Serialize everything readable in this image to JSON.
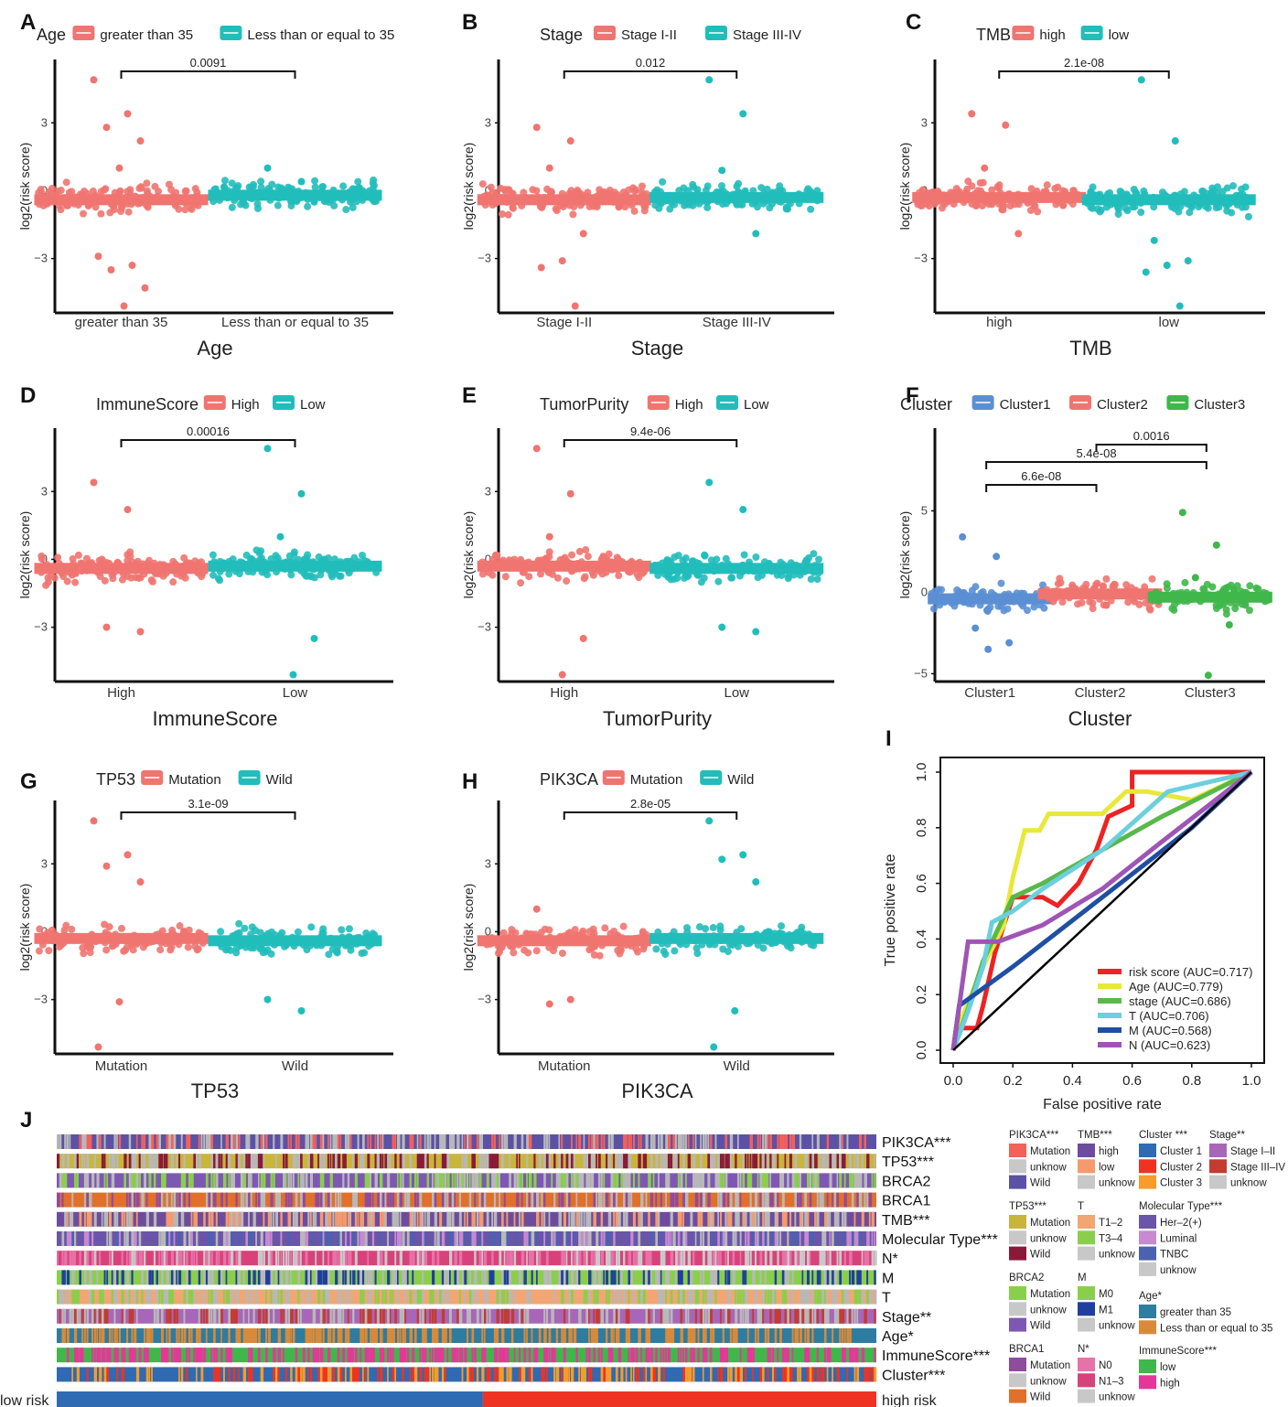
{
  "panel_letters": [
    "A",
    "B",
    "C",
    "D",
    "E",
    "F",
    "G",
    "H",
    "I",
    "J"
  ],
  "colors": {
    "red": "#f07470",
    "teal": "#21bdbb",
    "blue": "#5b8fd4",
    "green": "#3fb74a"
  },
  "chart_data": [
    {
      "id": "A",
      "type": "box-jitter",
      "title": "Age",
      "legend_title": "Age",
      "categories": [
        "greater than 35",
        "Less than or equal to 35"
      ],
      "legend_labels": [
        "greater than 35",
        "Less than or equal to 35"
      ],
      "xlabel": "Age",
      "ylabel": "log2(risk score)",
      "yticks": [
        -3,
        0,
        3
      ],
      "ylim": [
        -5.2,
        5.6
      ],
      "medians": [
        -0.4,
        -0.2
      ],
      "comparisons": [
        {
          "from": 0,
          "to": 1,
          "label": "0.0091"
        }
      ],
      "outliers": [
        [
          4.9,
          3.4,
          2.8,
          2.2,
          1.0,
          -2.9,
          -3.3,
          -3.5,
          -4.3,
          -5.1
        ],
        [
          1.0,
          0.4,
          -0.2,
          -0.5
        ]
      ]
    },
    {
      "id": "B",
      "type": "box-jitter",
      "title": "Stage",
      "legend_title": "Stage",
      "categories": [
        "Stage I-II",
        "Stage III-IV"
      ],
      "legend_labels": [
        "Stage I-II",
        "Stage III-IV"
      ],
      "xlabel": "Stage",
      "ylabel": "log2(risk score)",
      "yticks": [
        -3,
        0,
        3
      ],
      "ylim": [
        -5.2,
        5.6
      ],
      "medians": [
        -0.4,
        -0.3
      ],
      "comparisons": [
        {
          "from": 0,
          "to": 1,
          "label": "0.012"
        }
      ],
      "outliers": [
        [
          2.8,
          2.2,
          1.0,
          -1.9,
          -3.1,
          -3.4,
          -5.1
        ],
        [
          4.9,
          3.4,
          0.9,
          -1.9
        ]
      ]
    },
    {
      "id": "C",
      "type": "box-jitter",
      "title": "TMB",
      "legend_title": "TMB",
      "categories": [
        "high",
        "low"
      ],
      "legend_labels": [
        "high",
        "low"
      ],
      "xlabel": "TMB",
      "ylabel": "log2(risk score)",
      "yticks": [
        -3,
        0,
        3
      ],
      "ylim": [
        -5.2,
        5.6
      ],
      "medians": [
        -0.3,
        -0.4
      ],
      "comparisons": [
        {
          "from": 0,
          "to": 1,
          "label": "2.1e-08"
        }
      ],
      "outliers": [
        [
          3.4,
          2.9,
          1.0,
          -1.9
        ],
        [
          4.9,
          2.2,
          -2.2,
          -3.1,
          -3.3,
          -3.6,
          -5.1
        ]
      ]
    },
    {
      "id": "D",
      "type": "box-jitter",
      "title": "ImmuneScore",
      "legend_title": "ImmuneScore",
      "categories": [
        "High",
        "Low"
      ],
      "legend_labels": [
        "High",
        "Low"
      ],
      "xlabel": "ImmuneScore",
      "ylabel": "log2(risk score)",
      "yticks": [
        -3,
        0,
        3
      ],
      "ylim": [
        -5.2,
        5.6
      ],
      "medians": [
        -0.4,
        -0.3
      ],
      "comparisons": [
        {
          "from": 0,
          "to": 1,
          "label": "0.00016"
        }
      ],
      "outliers": [
        [
          3.4,
          2.2,
          -3.0,
          -3.2
        ],
        [
          4.9,
          2.9,
          1.0,
          -3.5,
          -5.1
        ]
      ]
    },
    {
      "id": "E",
      "type": "box-jitter",
      "title": "TumorPurity",
      "legend_title": "TumorPurity",
      "categories": [
        "High",
        "Low"
      ],
      "legend_labels": [
        "High",
        "Low"
      ],
      "xlabel": "TumorPurity",
      "ylabel": "log2(risk score)",
      "yticks": [
        -3,
        0,
        3
      ],
      "ylim": [
        -5.2,
        5.6
      ],
      "medians": [
        -0.3,
        -0.4
      ],
      "comparisons": [
        {
          "from": 0,
          "to": 1,
          "label": "9.4e-06"
        }
      ],
      "outliers": [
        [
          4.9,
          2.9,
          1.0,
          -3.5,
          -5.1
        ],
        [
          3.4,
          2.2,
          -3.0,
          -3.2
        ]
      ]
    },
    {
      "id": "F",
      "type": "box-jitter",
      "title": "Cluster",
      "legend_title": "Cluster",
      "categories": [
        "Cluster1",
        "Cluster2",
        "Cluster3"
      ],
      "legend_labels": [
        "Cluster1",
        "Cluster2",
        "Cluster3"
      ],
      "xlabel": "Cluster",
      "ylabel": "log2(risk score)",
      "yticks": [
        -5,
        0,
        5
      ],
      "ylim": [
        -5.2,
        9.8
      ],
      "medians": [
        -0.4,
        -0.1,
        -0.3
      ],
      "comparisons": [
        {
          "from": 0,
          "to": 1,
          "label": "6.6e-08"
        },
        {
          "from": 0,
          "to": 2,
          "label": "5.4e-08"
        },
        {
          "from": 1,
          "to": 2,
          "label": "0.0016"
        }
      ],
      "outliers": [
        [
          3.4,
          2.2,
          -2.2,
          -3.1,
          -3.5
        ],
        [
          0.3,
          -0.8
        ],
        [
          4.9,
          2.9,
          0.9,
          -2.0,
          -5.1
        ]
      ]
    },
    {
      "id": "G",
      "type": "box-jitter",
      "title": "TP53",
      "legend_title": "TP53",
      "categories": [
        "Mutation",
        "Wild"
      ],
      "legend_labels": [
        "Mutation",
        "Wild"
      ],
      "xlabel": "TP53",
      "ylabel": "log2(risk score)",
      "yticks": [
        -3,
        0,
        3
      ],
      "ylim": [
        -5.2,
        5.6
      ],
      "medians": [
        -0.3,
        -0.4
      ],
      "comparisons": [
        {
          "from": 0,
          "to": 1,
          "label": "3.1e-09"
        }
      ],
      "outliers": [
        [
          4.9,
          3.4,
          2.9,
          2.2,
          -3.1,
          -5.1
        ],
        [
          -3.0,
          -3.5
        ]
      ]
    },
    {
      "id": "H",
      "type": "box-jitter",
      "title": "PIK3CA",
      "legend_title": "PIK3CA",
      "categories": [
        "Mutation",
        "Wild"
      ],
      "legend_labels": [
        "Mutation",
        "Wild"
      ],
      "xlabel": "PIK3CA",
      "ylabel": "log2(risk score)",
      "yticks": [
        -3,
        0,
        3
      ],
      "ylim": [
        -5.2,
        5.6
      ],
      "medians": [
        -0.4,
        -0.3
      ],
      "comparisons": [
        {
          "from": 0,
          "to": 1,
          "label": "2.8e-05"
        }
      ],
      "outliers": [
        [
          1.0,
          -3.0,
          -3.2
        ],
        [
          4.9,
          3.4,
          3.2,
          2.2,
          -3.5,
          -5.1
        ]
      ]
    },
    {
      "id": "I",
      "type": "line",
      "title": "",
      "xlabel": "False positive rate",
      "ylabel": "True positive rate",
      "xlim": [
        0,
        1
      ],
      "ylim": [
        0,
        1
      ],
      "ticks": [
        "0.0",
        "0.2",
        "0.4",
        "0.6",
        "0.8",
        "1.0"
      ],
      "tick_values": [
        0,
        0.2,
        0.4,
        0.6,
        0.8,
        1.0
      ],
      "series": [
        {
          "name": "risk score (AUC=0.717)",
          "color": "#ee2222",
          "points": [
            [
              0,
              0
            ],
            [
              0.01,
              0.08
            ],
            [
              0.08,
              0.08
            ],
            [
              0.1,
              0.16
            ],
            [
              0.14,
              0.35
            ],
            [
              0.2,
              0.55
            ],
            [
              0.3,
              0.55
            ],
            [
              0.35,
              0.52
            ],
            [
              0.42,
              0.6
            ],
            [
              0.48,
              0.72
            ],
            [
              0.52,
              0.84
            ],
            [
              0.6,
              0.88
            ],
            [
              0.6,
              1.0
            ],
            [
              0.8,
              1.0
            ],
            [
              1,
              1
            ]
          ]
        },
        {
          "name": "Age (AUC=0.779)",
          "color": "#e8e83a",
          "points": [
            [
              0,
              0
            ],
            [
              0.03,
              0.12
            ],
            [
              0.1,
              0.3
            ],
            [
              0.17,
              0.45
            ],
            [
              0.2,
              0.62
            ],
            [
              0.24,
              0.79
            ],
            [
              0.29,
              0.79
            ],
            [
              0.32,
              0.85
            ],
            [
              0.43,
              0.85
            ],
            [
              0.5,
              0.85
            ],
            [
              0.58,
              0.93
            ],
            [
              0.65,
              0.93
            ],
            [
              0.8,
              0.9
            ],
            [
              1,
              1
            ]
          ]
        },
        {
          "name": "stage (AUC=0.686)",
          "color": "#5ab84a",
          "points": [
            [
              0,
              0
            ],
            [
              0.05,
              0.15
            ],
            [
              0.1,
              0.32
            ],
            [
              0.2,
              0.55
            ],
            [
              0.3,
              0.6
            ],
            [
              0.5,
              0.72
            ],
            [
              0.7,
              0.84
            ],
            [
              1,
              1
            ]
          ]
        },
        {
          "name": "T (AUC=0.706)",
          "color": "#6ccfde",
          "points": [
            [
              0,
              0
            ],
            [
              0.05,
              0.14
            ],
            [
              0.1,
              0.3
            ],
            [
              0.13,
              0.46
            ],
            [
              0.2,
              0.5
            ],
            [
              0.3,
              0.58
            ],
            [
              0.5,
              0.72
            ],
            [
              0.72,
              0.93
            ],
            [
              1,
              1
            ]
          ]
        },
        {
          "name": "M (AUC=0.568)",
          "color": "#1f4fa3",
          "points": [
            [
              0,
              0
            ],
            [
              0.02,
              0.16
            ],
            [
              0.2,
              0.3
            ],
            [
              0.5,
              0.55
            ],
            [
              0.8,
              0.8
            ],
            [
              1,
              1
            ]
          ]
        },
        {
          "name": "N (AUC=0.623)",
          "color": "#9e55b5",
          "points": [
            [
              0,
              0
            ],
            [
              0.05,
              0.39
            ],
            [
              0.15,
              0.39
            ],
            [
              0.3,
              0.45
            ],
            [
              0.5,
              0.58
            ],
            [
              0.7,
              0.75
            ],
            [
              1,
              1
            ]
          ]
        },
        {
          "name": "diagonal",
          "color": "#000000",
          "points": [
            [
              0,
              0
            ],
            [
              1,
              1
            ]
          ]
        }
      ]
    },
    {
      "id": "J",
      "type": "heatmap",
      "title": "",
      "rows": [
        "PIK3CA***",
        "TP53***",
        "BRCA2",
        "BRCA1",
        "TMB***",
        "Molecular Type***",
        "N*",
        "M",
        "T",
        "Stage**",
        "Age*",
        "ImmuneScore***",
        "Cluster***"
      ],
      "risk_labels": [
        "low risk",
        "high risk"
      ],
      "row_palettes": [
        [
          "#5b52a6",
          "#b8b8b8",
          "#f4605a"
        ],
        [
          "#c9b53a",
          "#8b1a3a",
          "#b8b8b8"
        ],
        [
          "#7e57b4",
          "#8acf4c",
          "#b8b8b8"
        ],
        [
          "#e0702a",
          "#8f4b9e",
          "#b8b8b8"
        ],
        [
          "#6d4c9e",
          "#f49a6c",
          "#b8b8b8"
        ],
        [
          "#6a55a8",
          "#c58ad1",
          "#4a62b0",
          "#b8b8b8"
        ],
        [
          "#d8427a",
          "#c8c8c8",
          "#e673a8"
        ],
        [
          "#8acf4c",
          "#1f3f9f",
          "#b8b8b8"
        ],
        [
          "#f2a673",
          "#8acf4c",
          "#b8b8b8"
        ],
        [
          "#a866b8",
          "#c43b2f",
          "#b8b8b8"
        ],
        [
          "#2e7ca0",
          "#d88a3a"
        ],
        [
          "#3fb74a",
          "#e7369a"
        ],
        [
          "#2f6ab3",
          "#ee3323",
          "#f79c28"
        ]
      ],
      "dominant": [
        0,
        0,
        0,
        0,
        0,
        0,
        0,
        0,
        0,
        0,
        0,
        0,
        0
      ],
      "risk_split": 0.52,
      "legends": [
        {
          "title": "PIK3CA***",
          "items": [
            [
              "Mutation",
              "#f4605a"
            ],
            [
              "unknow",
              "#c8c8c8"
            ],
            [
              "Wild",
              "#5b52a6"
            ]
          ]
        },
        {
          "title": "TMB***",
          "items": [
            [
              "high",
              "#6d4c9e"
            ],
            [
              "low",
              "#f49a6c"
            ],
            [
              "unknow",
              "#c8c8c8"
            ]
          ]
        },
        {
          "title": "Cluster ***",
          "items": [
            [
              "Cluster 1",
              "#2f6ab3"
            ],
            [
              "Cluster 2",
              "#ee3323"
            ],
            [
              "Cluster 3",
              "#f79c28"
            ]
          ]
        },
        {
          "title": "Stage**",
          "items": [
            [
              "Stage I–II",
              "#a866b8"
            ],
            [
              "Stage III–IV",
              "#c43b2f"
            ],
            [
              "unknow",
              "#c8c8c8"
            ]
          ]
        },
        {
          "title": "TP53***",
          "items": [
            [
              "Mutation",
              "#c9b53a"
            ],
            [
              "unknow",
              "#c8c8c8"
            ],
            [
              "Wild",
              "#8b1a3a"
            ]
          ]
        },
        {
          "title": "T",
          "items": [
            [
              "T1–2",
              "#f2a673"
            ],
            [
              "T3–4",
              "#8acf4c"
            ],
            [
              "unknow",
              "#c8c8c8"
            ]
          ]
        },
        {
          "title": "Molecular Type***",
          "items": [
            [
              "Her–2(+)",
              "#6a55a8"
            ],
            [
              "Luminal",
              "#c58ad1"
            ],
            [
              "TNBC",
              "#4a62b0"
            ],
            [
              "unknow",
              "#c8c8c8"
            ]
          ]
        },
        {
          "title": "BRCA2",
          "items": [
            [
              "Mutation",
              "#8acf4c"
            ],
            [
              "unknow",
              "#c8c8c8"
            ],
            [
              "Wild",
              "#7e57b4"
            ]
          ]
        },
        {
          "title": "M",
          "items": [
            [
              "M0",
              "#8acf4c"
            ],
            [
              "M1",
              "#1f3f9f"
            ],
            [
              "unknow",
              "#c8c8c8"
            ]
          ]
        },
        {
          "title": "Age*",
          "items": [
            [
              "greater than 35",
              "#2e7ca0"
            ],
            [
              "Less than or equal to 35",
              "#d88a3a"
            ]
          ]
        },
        {
          "title": "BRCA1",
          "items": [
            [
              "Mutation",
              "#8f4b9e"
            ],
            [
              "unknow",
              "#c8c8c8"
            ],
            [
              "Wild",
              "#e0702a"
            ]
          ]
        },
        {
          "title": "N*",
          "items": [
            [
              "N0",
              "#e673a8"
            ],
            [
              "N1–3",
              "#d8427a"
            ],
            [
              "unknow",
              "#c8c8c8"
            ]
          ]
        },
        {
          "title": "ImmuneScore***",
          "items": [
            [
              "low",
              "#3fb74a"
            ],
            [
              "high",
              "#e7369a"
            ]
          ]
        }
      ]
    }
  ]
}
